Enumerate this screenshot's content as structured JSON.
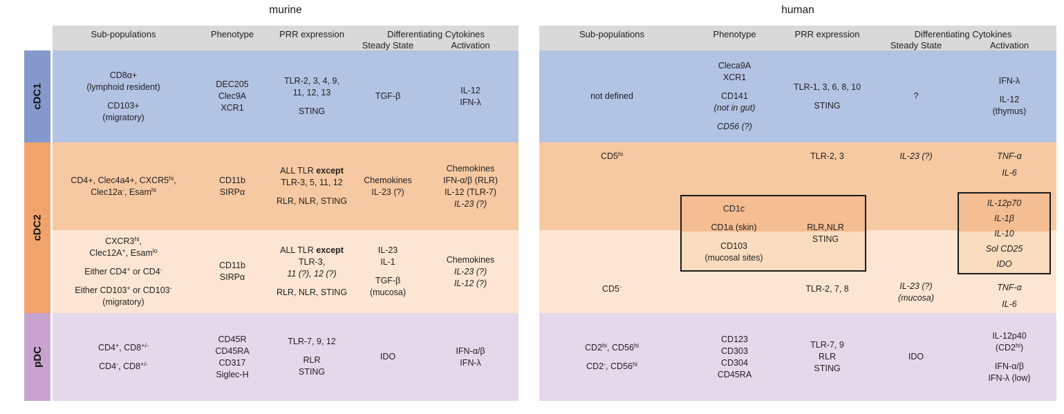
{
  "titles": {
    "murine": "murine",
    "human": "human"
  },
  "header": {
    "sub_populations": "Sub-populations",
    "phenotype": "Phenotype",
    "prr": "PRR expression",
    "diff_cytokines": "Differentiating Cytokines",
    "steady_state": "Steady State",
    "activation": "Activation"
  },
  "groups": {
    "cdc1": "cDC1",
    "cdc2": "cDC2",
    "pdc": "pDC"
  },
  "colors": {
    "header_bg": "#d9d9d9",
    "cdc1_strip": "#8599cc",
    "cdc1_row": "#b3c3e3",
    "cdc2_strip": "#f0a46b",
    "cdc2_row1": "#f6c9a2",
    "cdc2_row2": "#fce5d2",
    "pdc_strip": "#c9a3d0",
    "pdc_row": "#e4d9eb",
    "box_border": "#1a1a1a",
    "box_top": "#f5bd92",
    "box_bottom": "#fadcbf"
  },
  "murine": {
    "cdc1": {
      "sub": [
        "CD8α+",
        "(lymphoid resident)",
        "",
        "CD103+",
        "(migratory)"
      ],
      "phenotype": [
        "DEC205",
        "Clec9A",
        "XCR1"
      ],
      "prr": [
        "TLR-2, 3, 4, 9,",
        "11, 12, 13",
        "",
        "STING"
      ],
      "steady": [
        "TGF-β"
      ],
      "activation": [
        "IL-12",
        "IFN-λ"
      ]
    },
    "cdc2a": {
      "sub": [
        {
          "seg": [
            {
              "t": "CD4+, Clec4a4+, CXCR5"
            },
            {
              "t": "hi",
              "sup": true
            },
            {
              "t": ","
            }
          ]
        },
        {
          "seg": [
            {
              "t": "Clec12a"
            },
            {
              "t": "-",
              "sup": true
            },
            {
              "t": ", Esam"
            },
            {
              "t": "hi",
              "sup": true
            }
          ]
        }
      ],
      "phenotype": [
        "CD11b",
        "SIRPα"
      ],
      "prr": [
        {
          "seg": [
            {
              "t": "ALL TLR "
            },
            {
              "t": "except",
              "b": true
            }
          ]
        },
        "TLR-3, 5, 11, 12",
        "",
        "RLR, NLR, STING"
      ],
      "steady": [
        "Chemokines",
        "IL-23 (?)"
      ],
      "activation": [
        "Chemokines",
        "IFN-α/β  (RLR)",
        "IL-12 (TLR-7)",
        {
          "t": "IL-23 (?)",
          "i": true
        }
      ]
    },
    "cdc2b": {
      "sub": [
        {
          "seg": [
            {
              "t": "CXCR3"
            },
            {
              "t": "hi",
              "sup": true
            },
            {
              "t": ","
            }
          ]
        },
        {
          "seg": [
            {
              "t": "Clec12A"
            },
            {
              "t": "+",
              "sup": true
            },
            {
              "t": ", Esam"
            },
            {
              "t": "lo",
              "sup": true
            }
          ]
        },
        "",
        {
          "seg": [
            {
              "t": "Either CD4"
            },
            {
              "t": "+",
              "sup": true
            },
            {
              "t": " or CD4"
            },
            {
              "t": "-",
              "sup": true
            }
          ]
        },
        "",
        {
          "seg": [
            {
              "t": "Either CD103"
            },
            {
              "t": "+",
              "sup": true
            },
            {
              "t": " or CD103"
            },
            {
              "t": "-",
              "sup": true
            }
          ]
        },
        "(migratory)"
      ],
      "phenotype": [
        "CD11b",
        "SIRPα"
      ],
      "prr": [
        {
          "seg": [
            {
              "t": "ALL TLR "
            },
            {
              "t": "except",
              "b": true
            }
          ]
        },
        "TLR-3,",
        {
          "t": "11 (?), 12 (?)",
          "i": true
        },
        "",
        "RLR, NLR, STING"
      ],
      "steady": [
        "IL-23",
        "IL-1",
        "",
        "TGF-β",
        "(mucosa)"
      ],
      "activation": [
        "Chemokines",
        {
          "t": "IL-23 (?)",
          "i": true
        },
        {
          "t": "IL-12 (?)",
          "i": true
        }
      ]
    },
    "pdc": {
      "sub": [
        {
          "seg": [
            {
              "t": "CD4"
            },
            {
              "t": "+",
              "sup": true
            },
            {
              "t": ", CD8"
            },
            {
              "t": "+/-",
              "sup": true
            }
          ]
        },
        "",
        {
          "seg": [
            {
              "t": "CD4"
            },
            {
              "t": "-",
              "sup": true
            },
            {
              "t": ", CD8"
            },
            {
              "t": "+/-",
              "sup": true
            }
          ]
        }
      ],
      "phenotype": [
        "CD45R",
        "CD45RA",
        "CD317",
        "Siglec-H"
      ],
      "prr": [
        "TLR-7, 9, 12",
        "",
        "RLR",
        "STING"
      ],
      "steady": [
        "IDO"
      ],
      "activation": [
        "IFN-α/β",
        "IFN-λ"
      ]
    }
  },
  "human": {
    "cdc1": {
      "sub": [
        "not defined"
      ],
      "phenotype": [
        "Cleca9A",
        "XCR1",
        "",
        "CD141",
        {
          "t": "(not in gut)",
          "i": true
        },
        "",
        {
          "t": "CD56 (?)",
          "i": true
        }
      ],
      "prr": [
        "TLR-1, 3, 6, 8, 10",
        "",
        "STING"
      ],
      "steady": [
        "?"
      ],
      "activation": [
        "IFN-λ",
        "",
        "IL-12",
        "(thymus)"
      ]
    },
    "cdc2": {
      "row1": {
        "sub": [
          {
            "seg": [
              {
                "t": "CD5"
              },
              {
                "t": "hi",
                "sup": true
              }
            ]
          }
        ],
        "prr": [
          "TLR-2, 3"
        ],
        "steady": [
          {
            "t": "IL-23 (?)",
            "i": true
          }
        ],
        "activation": [
          {
            "t": "TNF-α",
            "i": true
          },
          {
            "t": "IL-6",
            "i": true
          }
        ]
      },
      "row2": {
        "sub": [
          {
            "seg": [
              {
                "t": "CD5"
              },
              {
                "t": "-",
                "sup": true
              }
            ]
          }
        ],
        "prr": [
          "TLR-2, 7, 8"
        ],
        "steady": [
          {
            "t": "IL-23 (?)",
            "i": true
          },
          {
            "t": "(mucosa)",
            "i": true
          }
        ],
        "activation": [
          {
            "t": "TNF-α",
            "i": true
          },
          {
            "t": "IL-6",
            "i": true
          }
        ]
      },
      "phenotype_box": {
        "left": [
          "CD1c",
          "",
          "CD1a (skin)",
          "",
          "CD103",
          "(mucosal sites)"
        ],
        "right": [
          "RLR,NLR",
          "STING"
        ]
      },
      "activation_box": [
        {
          "t": "IL-12p70",
          "i": true
        },
        {
          "t": "IL-1β",
          "i": true
        },
        {
          "t": "IL-10",
          "i": true
        },
        {
          "t": "Sol CD25",
          "i": true
        },
        {
          "t": "IDO",
          "i": true
        }
      ]
    },
    "pdc": {
      "sub": [
        {
          "seg": [
            {
              "t": "CD2"
            },
            {
              "t": "hi",
              "sup": true
            },
            {
              "t": ", CD56"
            },
            {
              "t": "hi",
              "sup": true
            }
          ]
        },
        "",
        {
          "seg": [
            {
              "t": "CD2"
            },
            {
              "t": "-",
              "sup": true
            },
            {
              "t": ", CD56"
            },
            {
              "t": "hi",
              "sup": true
            }
          ]
        }
      ],
      "phenotype": [
        "CD123",
        "CD303",
        "CD304",
        "CD45RA"
      ],
      "prr": [
        "TLR-7, 9",
        "RLR",
        "STING"
      ],
      "steady": [
        "IDO"
      ],
      "activation": [
        "IL-12p40",
        {
          "seg": [
            {
              "t": "(CD2"
            },
            {
              "t": "hi",
              "sup": true
            },
            {
              "t": ")"
            }
          ]
        },
        "",
        "IFN-α/β",
        "IFN-λ (low)"
      ]
    }
  }
}
